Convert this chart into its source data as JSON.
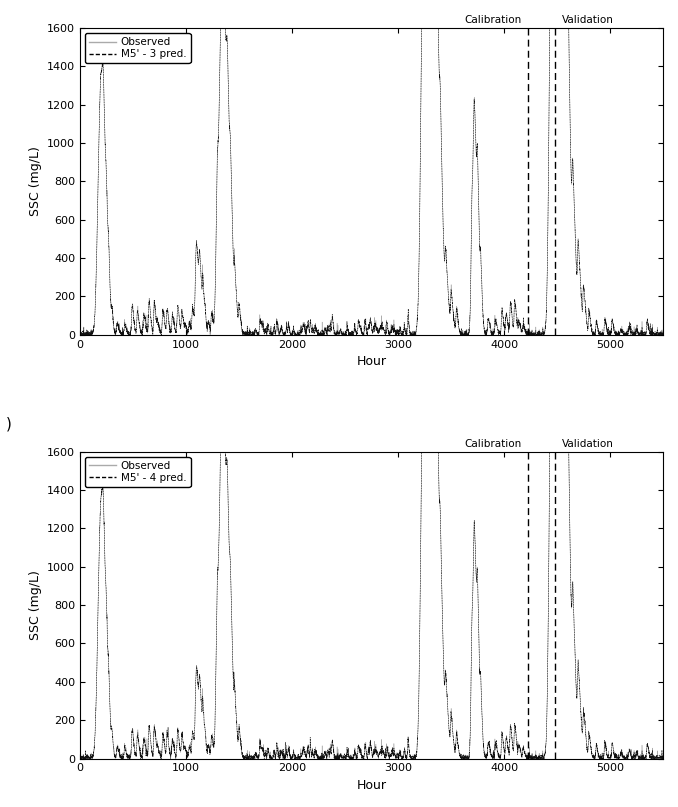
{
  "xlim": [
    0,
    5500
  ],
  "ylim": [
    0,
    1600
  ],
  "xlabel": "Hour",
  "ylabel": "SSC (mg/L)",
  "calib_line_x": 4230,
  "valid_line_x": 4480,
  "calib_label": "Calibration",
  "valid_label": "Validation",
  "top_legend_label1": "Observed",
  "top_legend_label2": "M5' - 3 pred.",
  "bot_legend_label1": "Observed",
  "bot_legend_label2": "M5' - 4 pred.",
  "side_label": ")",
  "yticks": [
    0,
    200,
    400,
    600,
    800,
    1000,
    1200,
    1400,
    1600
  ],
  "xticks": [
    0,
    1000,
    2000,
    3000,
    4000,
    5000
  ],
  "observed_color": "#aaaaaa",
  "predicted_color": "#000000",
  "background_color": "#ffffff",
  "n_points": 5500
}
